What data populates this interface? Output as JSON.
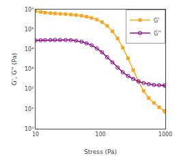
{
  "chart_data": {
    "type": "line",
    "x": [
      10,
      12,
      14,
      17,
      20,
      24,
      29,
      35,
      42,
      51,
      61,
      73,
      88,
      106,
      127,
      153,
      184,
      221,
      266,
      320,
      385,
      463,
      556,
      668,
      803,
      964,
      1000
    ],
    "series": [
      {
        "name": "G'",
        "color": "#f5a623",
        "marker": "square",
        "values": [
          820000,
          750000,
          700000,
          660000,
          630000,
          610000,
          590000,
          560000,
          530000,
          490000,
          440000,
          380000,
          310000,
          230000,
          150000,
          80000,
          35000,
          12000,
          3500,
          900,
          250,
          80,
          35,
          20,
          12,
          8,
          7
        ]
      },
      {
        "name": "G''",
        "color": "#8b008b",
        "marker": "circle-open",
        "values": [
          28000,
          28500,
          29000,
          29500,
          30000,
          30000,
          29500,
          29000,
          27000,
          24000,
          20000,
          16000,
          11000,
          7000,
          4000,
          2200,
          1200,
          700,
          450,
          320,
          240,
          200,
          175,
          160,
          155,
          150,
          148
        ]
      }
    ],
    "xlabel": "Stress (Pa)",
    "ylabel": "G', G'' (Pa)",
    "xlim": [
      10,
      1000
    ],
    "ylim": [
      1,
      1000000
    ],
    "xticks": [
      10,
      100,
      1000
    ],
    "yticks": [
      {
        "value": 1,
        "label": "10⁰"
      },
      {
        "value": 10,
        "label": "10¹"
      },
      {
        "value": 100,
        "label": "10²"
      },
      {
        "value": 1000,
        "label": "10³"
      },
      {
        "value": 10000,
        "label": "10⁴"
      },
      {
        "value": 100000,
        "label": "10⁵"
      },
      {
        "value": 1000000,
        "label": "10⁶"
      }
    ],
    "log": true,
    "grid": false,
    "legend": "upper right"
  }
}
